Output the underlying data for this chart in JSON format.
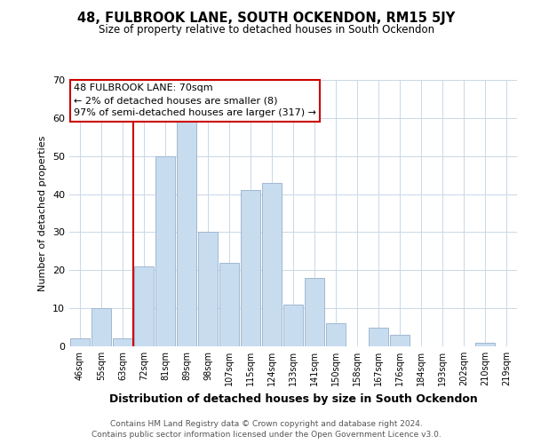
{
  "title": "48, FULBROOK LANE, SOUTH OCKENDON, RM15 5JY",
  "subtitle": "Size of property relative to detached houses in South Ockendon",
  "xlabel": "Distribution of detached houses by size in South Ockendon",
  "ylabel": "Number of detached properties",
  "bar_labels": [
    "46sqm",
    "55sqm",
    "63sqm",
    "72sqm",
    "81sqm",
    "89sqm",
    "98sqm",
    "107sqm",
    "115sqm",
    "124sqm",
    "133sqm",
    "141sqm",
    "150sqm",
    "158sqm",
    "167sqm",
    "176sqm",
    "184sqm",
    "193sqm",
    "202sqm",
    "210sqm",
    "219sqm"
  ],
  "bar_values": [
    2,
    10,
    2,
    21,
    50,
    59,
    30,
    22,
    41,
    43,
    11,
    18,
    6,
    0,
    5,
    3,
    0,
    0,
    0,
    1,
    0
  ],
  "bar_color": "#c8dcf0",
  "bar_edge_color": "#a0b8d0",
  "vline_x_index": 3,
  "vline_color": "#cc0000",
  "ylim": [
    0,
    70
  ],
  "yticks": [
    0,
    10,
    20,
    30,
    40,
    50,
    60,
    70
  ],
  "annotation_line1": "48 FULBROOK LANE: 70sqm",
  "annotation_line2": "← 2% of detached houses are smaller (8)",
  "annotation_line3": "97% of semi-detached houses are larger (317) →",
  "footer1": "Contains HM Land Registry data © Crown copyright and database right 2024.",
  "footer2": "Contains public sector information licensed under the Open Government Licence v3.0.",
  "background_color": "#ffffff",
  "grid_color": "#c8d8e8"
}
